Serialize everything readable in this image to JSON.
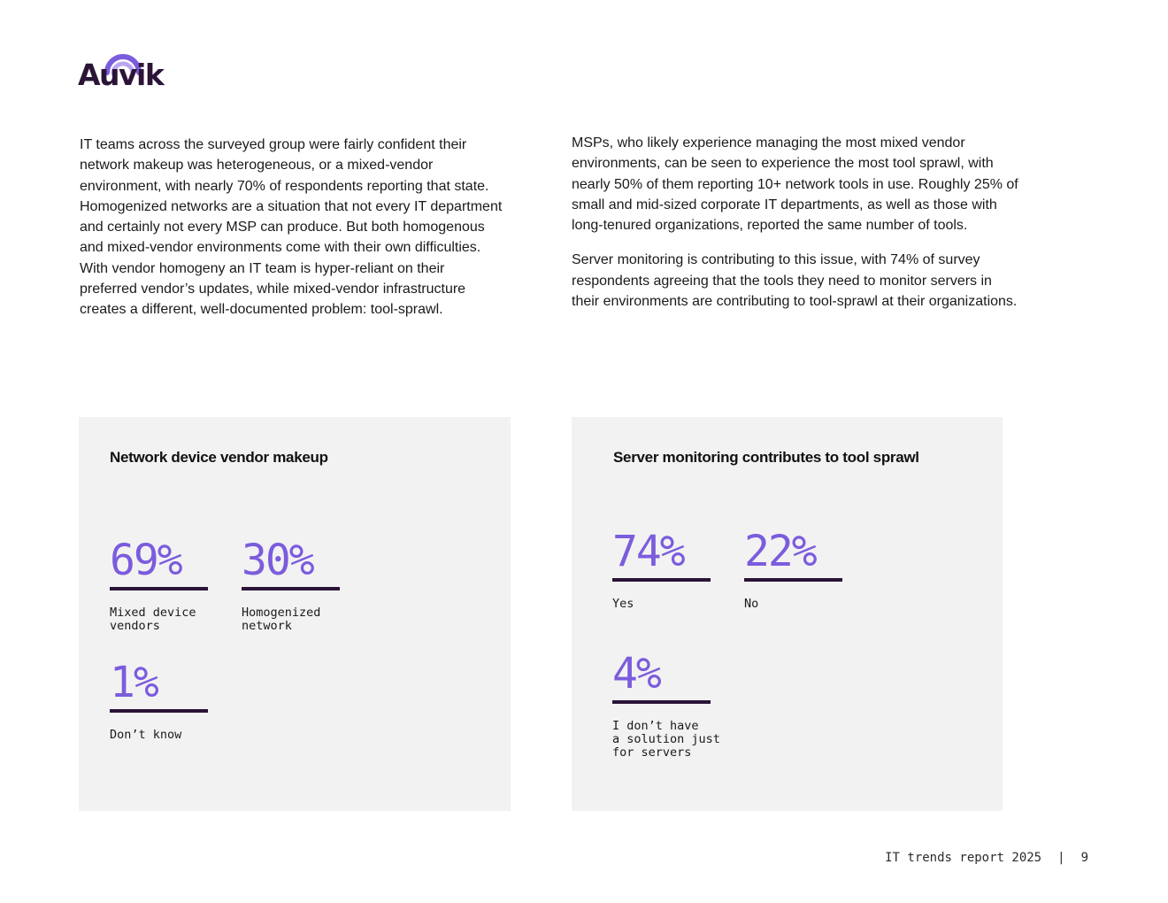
{
  "logo": {
    "text": "Auvik"
  },
  "left_column": {
    "paragraphs": [
      "IT teams across the surveyed group were fairly confident their network makeup was heterogeneous, or a mixed-vendor environment, with nearly 70% of respondents reporting that state. Homogenized networks are a situation that not every IT department and certainly not every MSP can produce. But both homogenous and mixed-vendor environments come with their own difficulties. With vendor homogeny an IT team is hyper-reliant on their preferred vendor’s updates, while mixed-vendor infrastructure creates a different, well-documented problem: tool-sprawl."
    ]
  },
  "right_column": {
    "paragraphs": [
      "MSPs, who likely experience managing the most mixed vendor environments, can be seen to experience the most tool sprawl, with nearly 50% of them reporting 10+ network tools in use.  Roughly 25% of small and mid-sized corporate IT departments, as well as those with long-tenured organizations, reported the same number of tools.",
      "Server monitoring is contributing to this issue, with 74% of survey respondents agreeing that the tools they need to monitor servers in their environments are contributing to tool-sprawl at their organizations."
    ]
  },
  "cards": [
    {
      "title": "Network device vendor makeup",
      "stats": [
        {
          "value": "69%",
          "label": "Mixed device\nvendors"
        },
        {
          "value": "30%",
          "label": "Homogenized\nnetwork"
        },
        {
          "value": "1%",
          "label": "Don’t know"
        }
      ]
    },
    {
      "title": "Server monitoring contributes to tool sprawl",
      "stats": [
        {
          "value": "74%",
          "label": "Yes"
        },
        {
          "value": "22%",
          "label": "No"
        },
        {
          "value": "4%",
          "label": "I don’t have\na solution just\nfor servers"
        }
      ]
    }
  ],
  "footer": {
    "report": "IT trends report 2025",
    "separator": "|",
    "page": "9"
  },
  "colors": {
    "accent": "#7b5cdd",
    "dark": "#2b1437",
    "card_bg": "#f2f2f2"
  }
}
